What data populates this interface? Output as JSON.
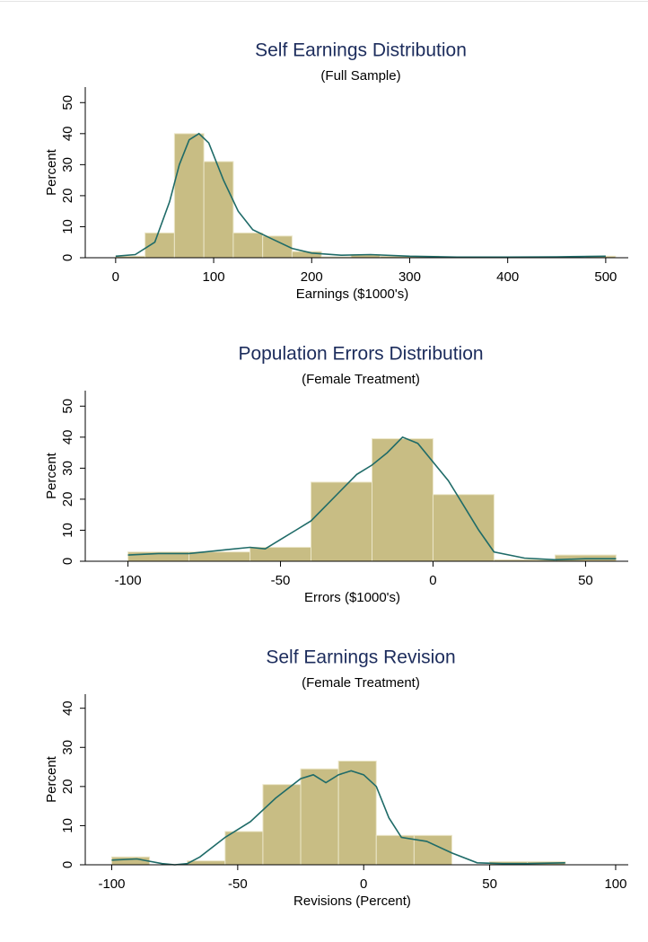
{
  "chart_data": [
    {
      "type": "histogram",
      "title": "Self Earnings Distribution",
      "subtitle": "(Full Sample)",
      "x_label": "Earnings ($1000's)",
      "y_label": "Percent",
      "bins": [
        0,
        30,
        60,
        90,
        120,
        150,
        180,
        210,
        240,
        270,
        300,
        330,
        360,
        390,
        420,
        450,
        480,
        510
      ],
      "counts": [
        0.5,
        8,
        40,
        31,
        8,
        7,
        2,
        0.3,
        1,
        0.5,
        0.5,
        0,
        0,
        0,
        0,
        0,
        0.5
      ],
      "color": "#c8bd84",
      "line_color": "#1f6b68",
      "density_x": [
        0,
        20,
        40,
        55,
        65,
        75,
        85,
        95,
        110,
        125,
        140,
        160,
        180,
        200,
        230,
        260,
        300,
        350,
        400,
        450,
        500
      ],
      "density_y": [
        0.5,
        1,
        5,
        18,
        30,
        38,
        40,
        37,
        25,
        15,
        9,
        6,
        3,
        1.5,
        0.8,
        1,
        0.5,
        0.2,
        0.2,
        0.3,
        0.5
      ],
      "xlim": [
        -31,
        523
      ],
      "ylim": [
        0,
        55
      ],
      "xticks": [
        0,
        100,
        200,
        300,
        400,
        500
      ],
      "yticks": [
        0,
        10,
        20,
        30,
        40,
        50
      ]
    },
    {
      "type": "histogram",
      "title": "Population Errors Distribution",
      "subtitle": "(Female Treatment)",
      "x_label": "Errors ($1000's)",
      "y_label": "Percent",
      "bins": [
        -100,
        -80,
        -60,
        -40,
        -20,
        0,
        20,
        40,
        60
      ],
      "counts": [
        3,
        3,
        4.5,
        25.5,
        39.5,
        21.5,
        0.5,
        2
      ],
      "color": "#c8bd84",
      "line_color": "#1f6b68",
      "density_x": [
        -100,
        -90,
        -80,
        -70,
        -60,
        -55,
        -50,
        -45,
        -40,
        -35,
        -30,
        -25,
        -20,
        -15,
        -10,
        -5,
        0,
        5,
        10,
        15,
        20,
        30,
        40,
        50,
        60
      ],
      "density_y": [
        2,
        2.5,
        2.5,
        3.5,
        4.5,
        4,
        7,
        10,
        13,
        18,
        23,
        28,
        31,
        35,
        40,
        38,
        32,
        26,
        18,
        10,
        3,
        1,
        0.5,
        0.8,
        0.8
      ],
      "xlim": [
        -114,
        64
      ],
      "ylim": [
        0,
        55
      ],
      "xticks": [
        -100,
        -50,
        0,
        50
      ],
      "yticks": [
        0,
        10,
        20,
        30,
        40,
        50
      ]
    },
    {
      "type": "histogram",
      "title": "Self Earnings Revision",
      "subtitle": "(Female Treatment)",
      "x_label": "Revisions (Percent)",
      "y_label": "Percent",
      "bins": [
        -100,
        -85,
        -70,
        -55,
        -40,
        -25,
        -10,
        5,
        20,
        35,
        50,
        65,
        80
      ],
      "counts": [
        2,
        0,
        1,
        8.5,
        20.5,
        24.5,
        26.5,
        7.5,
        7.5,
        0,
        0.8,
        0.8
      ],
      "color": "#c8bd84",
      "line_color": "#1f6b68",
      "density_x": [
        -100,
        -90,
        -80,
        -75,
        -70,
        -65,
        -55,
        -45,
        -35,
        -25,
        -20,
        -15,
        -10,
        -5,
        0,
        5,
        10,
        15,
        25,
        35,
        45,
        55,
        65,
        80
      ],
      "density_y": [
        1.2,
        1.5,
        0.3,
        0,
        0.3,
        2,
        7,
        11,
        17,
        22,
        23,
        21,
        23,
        24,
        23,
        20,
        12,
        7,
        6,
        3,
        0.5,
        0.3,
        0.3,
        0.5
      ],
      "xlim": [
        -110.5,
        105
      ],
      "ylim": [
        0,
        43.6
      ],
      "xticks": [
        -100,
        -50,
        0,
        50,
        100
      ],
      "yticks": [
        0,
        10,
        20,
        30,
        40
      ]
    }
  ]
}
